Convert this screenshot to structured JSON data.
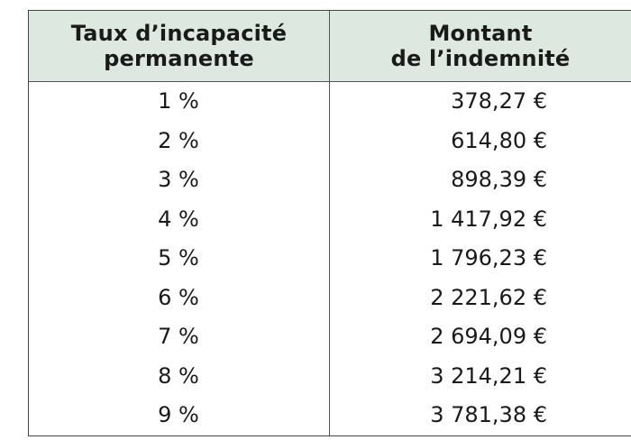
{
  "table": {
    "headers": {
      "col1_line1": "Taux d’incapacité",
      "col1_line2": "permanente",
      "col2_line1": "Montant",
      "col2_line2": "de l’indemnité"
    },
    "rows": [
      {
        "rate": "1 %",
        "amount": "378,27 €"
      },
      {
        "rate": "2 %",
        "amount": "614,80 €"
      },
      {
        "rate": "3 %",
        "amount": "898,39 €"
      },
      {
        "rate": "4 %",
        "amount": "1 417,92 €"
      },
      {
        "rate": "5 %",
        "amount": "1 796,23 €"
      },
      {
        "rate": "6 %",
        "amount": "2 221,62 €"
      },
      {
        "rate": "7 %",
        "amount": "2 694,09 €"
      },
      {
        "rate": "8 %",
        "amount": "3 214,21 €"
      },
      {
        "rate": "9 %",
        "amount": "3 781,38 €"
      }
    ]
  },
  "colors": {
    "header_background": "#dde9e0",
    "rule": "#444444",
    "text": "#1a1a1a"
  }
}
